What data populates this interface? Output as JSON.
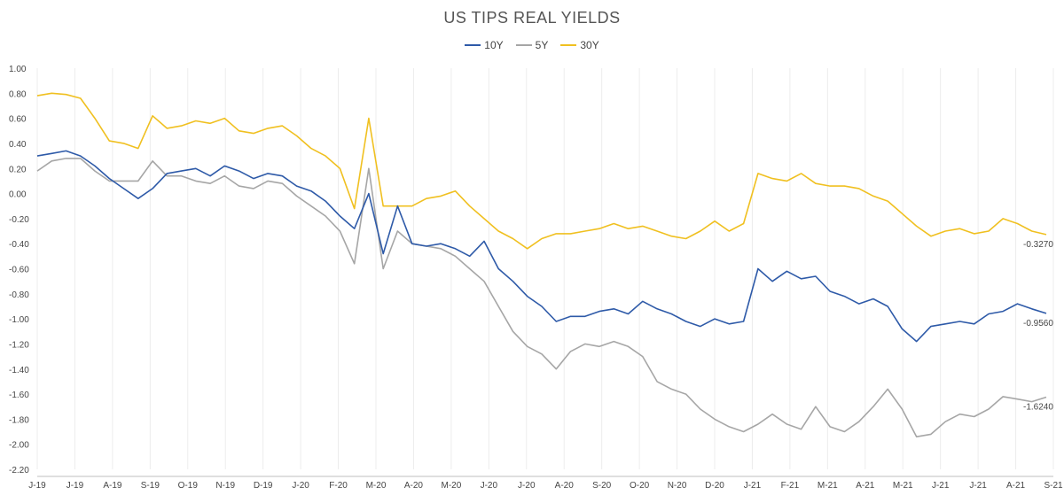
{
  "chart_data": {
    "type": "line",
    "title": "US TIPS REAL YIELDS",
    "xlabel": "",
    "ylabel": "",
    "ylim": [
      -2.2,
      1.0
    ],
    "yticks": [
      "1.00",
      "0.80",
      "0.60",
      "0.40",
      "0.20",
      "0.00",
      "-0.20",
      "-0.40",
      "-0.60",
      "-0.80",
      "-1.00",
      "-1.20",
      "-1.40",
      "-1.60",
      "-1.80",
      "-2.00",
      "-2.20"
    ],
    "xticks": [
      "J-19",
      "J-19",
      "A-19",
      "S-19",
      "O-19",
      "N-19",
      "D-19",
      "J-20",
      "F-20",
      "M-20",
      "A-20",
      "M-20",
      "J-20",
      "J-20",
      "A-20",
      "S-20",
      "O-20",
      "N-20",
      "D-20",
      "J-21",
      "F-21",
      "M-21",
      "A-21",
      "M-21",
      "J-21",
      "J-21",
      "A-21",
      "S-21"
    ],
    "grid": "vertical",
    "legend": "top-center",
    "series": [
      {
        "name": "10Y",
        "color": "#2e5aa8",
        "end_label": "-0.9560",
        "values": [
          0.3,
          0.32,
          0.34,
          0.3,
          0.22,
          0.12,
          0.04,
          -0.04,
          0.04,
          0.16,
          0.18,
          0.2,
          0.14,
          0.22,
          0.18,
          0.12,
          0.16,
          0.14,
          0.06,
          0.02,
          -0.06,
          -0.18,
          -0.28,
          0.0,
          -0.48,
          -0.1,
          -0.4,
          -0.42,
          -0.4,
          -0.44,
          -0.5,
          -0.38,
          -0.6,
          -0.7,
          -0.82,
          -0.9,
          -1.02,
          -0.98,
          -0.98,
          -0.94,
          -0.92,
          -0.96,
          -0.86,
          -0.92,
          -0.96,
          -1.02,
          -1.06,
          -1.0,
          -1.04,
          -1.02,
          -0.6,
          -0.7,
          -0.62,
          -0.68,
          -0.66,
          -0.78,
          -0.82,
          -0.88,
          -0.84,
          -0.9,
          -1.08,
          -1.18,
          -1.06,
          -1.04,
          -1.02,
          -1.04,
          -0.96,
          -0.94,
          -0.88,
          -0.92,
          -0.956
        ]
      },
      {
        "name": "5Y",
        "color": "#a6a6a6",
        "end_label": "-1.6240",
        "values": [
          0.18,
          0.26,
          0.28,
          0.28,
          0.18,
          0.1,
          0.1,
          0.1,
          0.26,
          0.14,
          0.14,
          0.1,
          0.08,
          0.14,
          0.06,
          0.04,
          0.1,
          0.08,
          -0.02,
          -0.1,
          -0.18,
          -0.3,
          -0.56,
          0.2,
          -0.6,
          -0.3,
          -0.4,
          -0.42,
          -0.44,
          -0.5,
          -0.6,
          -0.7,
          -0.9,
          -1.1,
          -1.22,
          -1.28,
          -1.4,
          -1.26,
          -1.2,
          -1.22,
          -1.18,
          -1.22,
          -1.3,
          -1.5,
          -1.56,
          -1.6,
          -1.72,
          -1.8,
          -1.86,
          -1.9,
          -1.84,
          -1.76,
          -1.84,
          -1.88,
          -1.7,
          -1.86,
          -1.9,
          -1.82,
          -1.7,
          -1.56,
          -1.72,
          -1.94,
          -1.92,
          -1.82,
          -1.76,
          -1.78,
          -1.72,
          -1.62,
          -1.64,
          -1.66,
          -1.624
        ]
      },
      {
        "name": "30Y",
        "color": "#f0c020",
        "end_label": "-0.3270",
        "values": [
          0.78,
          0.8,
          0.79,
          0.76,
          0.6,
          0.42,
          0.4,
          0.36,
          0.62,
          0.52,
          0.54,
          0.58,
          0.56,
          0.6,
          0.5,
          0.48,
          0.52,
          0.54,
          0.46,
          0.36,
          0.3,
          0.2,
          -0.12,
          0.6,
          -0.1,
          -0.1,
          -0.1,
          -0.04,
          -0.02,
          0.02,
          -0.1,
          -0.2,
          -0.3,
          -0.36,
          -0.44,
          -0.36,
          -0.32,
          -0.32,
          -0.3,
          -0.28,
          -0.24,
          -0.28,
          -0.26,
          -0.3,
          -0.34,
          -0.36,
          -0.3,
          -0.22,
          -0.3,
          -0.24,
          0.16,
          0.12,
          0.1,
          0.16,
          0.08,
          0.06,
          0.06,
          0.04,
          -0.02,
          -0.06,
          -0.16,
          -0.26,
          -0.34,
          -0.3,
          -0.28,
          -0.32,
          -0.3,
          -0.2,
          -0.24,
          -0.3,
          -0.327
        ]
      }
    ]
  }
}
